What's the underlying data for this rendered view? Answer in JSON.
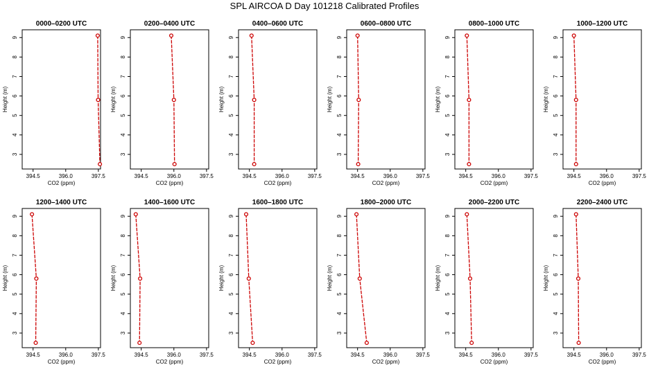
{
  "page": {
    "title": "SPL AIRCOA D  Day 101218  Calibrated Profiles"
  },
  "colors": {
    "profile_line": "#cc0000",
    "frame": "#000000",
    "background": "#ffffff"
  },
  "chart_data": [
    {
      "type": "line",
      "title": "0000–0200 UTC",
      "xlabel": "CO2 (ppm)",
      "ylabel": "Height (m)",
      "x_ticks": [
        "394.5",
        "396.0",
        "397.5"
      ],
      "y_ticks": [
        "3",
        "4",
        "5",
        "6",
        "7",
        "8",
        "9"
      ],
      "xlim": [
        394.0,
        397.6
      ],
      "ylim": [
        2.25,
        9.4
      ],
      "grid": false,
      "series": [
        {
          "x": [
            397.47,
            397.49,
            397.57
          ],
          "y": [
            9.1,
            5.8,
            2.5
          ]
        }
      ]
    },
    {
      "type": "line",
      "title": "0200–0400 UTC",
      "xlabel": "CO2 (ppm)",
      "ylabel": "Height (m)",
      "x_ticks": [
        "394.5",
        "396.0",
        "397.5"
      ],
      "y_ticks": [
        "3",
        "4",
        "5",
        "6",
        "7",
        "8",
        "9"
      ],
      "xlim": [
        394.0,
        397.6
      ],
      "ylim": [
        2.25,
        9.4
      ],
      "grid": false,
      "series": [
        {
          "x": [
            395.88,
            396.0,
            396.03
          ],
          "y": [
            9.1,
            5.8,
            2.5
          ]
        }
      ]
    },
    {
      "type": "line",
      "title": "0400–0600 UTC",
      "xlabel": "CO2 (ppm)",
      "ylabel": "Height (m)",
      "x_ticks": [
        "394.5",
        "396.0",
        "397.5"
      ],
      "y_ticks": [
        "3",
        "4",
        "5",
        "6",
        "7",
        "8",
        "9"
      ],
      "xlim": [
        394.0,
        397.6
      ],
      "ylim": [
        2.25,
        9.4
      ],
      "grid": false,
      "series": [
        {
          "x": [
            394.6,
            394.72,
            394.72
          ],
          "y": [
            9.1,
            5.8,
            2.5
          ]
        }
      ]
    },
    {
      "type": "line",
      "title": "0600–0800 UTC",
      "xlabel": "CO2 (ppm)",
      "ylabel": "Height (m)",
      "x_ticks": [
        "394.5",
        "396.0",
        "397.5"
      ],
      "y_ticks": [
        "3",
        "4",
        "5",
        "6",
        "7",
        "8",
        "9"
      ],
      "xlim": [
        394.0,
        397.6
      ],
      "ylim": [
        2.25,
        9.4
      ],
      "grid": false,
      "series": [
        {
          "x": [
            394.5,
            394.55,
            394.53
          ],
          "y": [
            9.1,
            5.8,
            2.5
          ]
        }
      ]
    },
    {
      "type": "line",
      "title": "0800–1000 UTC",
      "xlabel": "CO2 (ppm)",
      "ylabel": "Height (m)",
      "x_ticks": [
        "394.5",
        "396.0",
        "397.5"
      ],
      "y_ticks": [
        "3",
        "4",
        "5",
        "6",
        "7",
        "8",
        "9"
      ],
      "xlim": [
        394.0,
        397.6
      ],
      "ylim": [
        2.25,
        9.4
      ],
      "grid": false,
      "series": [
        {
          "x": [
            394.55,
            394.65,
            394.65
          ],
          "y": [
            9.1,
            5.8,
            2.5
          ]
        }
      ]
    },
    {
      "type": "line",
      "title": "1000–1200 UTC",
      "xlabel": "CO2 (ppm)",
      "ylabel": "Height (m)",
      "x_ticks": [
        "394.5",
        "396.0",
        "397.5"
      ],
      "y_ticks": [
        "3",
        "4",
        "5",
        "6",
        "7",
        "8",
        "9"
      ],
      "xlim": [
        394.0,
        397.6
      ],
      "ylim": [
        2.25,
        9.4
      ],
      "grid": false,
      "series": [
        {
          "x": [
            394.5,
            394.6,
            394.6
          ],
          "y": [
            9.1,
            5.8,
            2.5
          ]
        }
      ]
    },
    {
      "type": "line",
      "title": "1200–1400 UTC",
      "xlabel": "CO2 (ppm)",
      "ylabel": "Height (m)",
      "x_ticks": [
        "394.5",
        "396.0",
        "397.5"
      ],
      "y_ticks": [
        "3",
        "4",
        "5",
        "6",
        "7",
        "8",
        "9"
      ],
      "xlim": [
        394.0,
        397.6
      ],
      "ylim": [
        2.25,
        9.4
      ],
      "grid": false,
      "series": [
        {
          "x": [
            394.45,
            394.65,
            394.62
          ],
          "y": [
            9.1,
            5.8,
            2.5
          ]
        }
      ]
    },
    {
      "type": "line",
      "title": "1400–1600 UTC",
      "xlabel": "CO2 (ppm)",
      "ylabel": "Height (m)",
      "x_ticks": [
        "394.5",
        "396.0",
        "397.5"
      ],
      "y_ticks": [
        "3",
        "4",
        "5",
        "6",
        "7",
        "8",
        "9"
      ],
      "xlim": [
        394.0,
        397.6
      ],
      "ylim": [
        2.25,
        9.4
      ],
      "grid": false,
      "series": [
        {
          "x": [
            394.25,
            394.45,
            394.42
          ],
          "y": [
            9.1,
            5.8,
            2.5
          ]
        }
      ]
    },
    {
      "type": "line",
      "title": "1600–1800 UTC",
      "xlabel": "CO2 (ppm)",
      "ylabel": "Height (m)",
      "x_ticks": [
        "394.5",
        "396.0",
        "397.5"
      ],
      "y_ticks": [
        "3",
        "4",
        "5",
        "6",
        "7",
        "8",
        "9"
      ],
      "xlim": [
        394.0,
        397.6
      ],
      "ylim": [
        2.25,
        9.4
      ],
      "grid": false,
      "series": [
        {
          "x": [
            394.35,
            394.47,
            394.65
          ],
          "y": [
            9.1,
            5.8,
            2.5
          ]
        }
      ]
    },
    {
      "type": "line",
      "title": "1800–2000 UTC",
      "xlabel": "CO2 (ppm)",
      "ylabel": "Height (m)",
      "x_ticks": [
        "394.5",
        "396.0",
        "397.5"
      ],
      "y_ticks": [
        "3",
        "4",
        "5",
        "6",
        "7",
        "8",
        "9"
      ],
      "xlim": [
        394.0,
        397.6
      ],
      "ylim": [
        2.25,
        9.4
      ],
      "grid": false,
      "series": [
        {
          "x": [
            394.45,
            394.6,
            394.92
          ],
          "y": [
            9.1,
            5.8,
            2.5
          ]
        }
      ]
    },
    {
      "type": "line",
      "title": "2000–2200 UTC",
      "xlabel": "CO2 (ppm)",
      "ylabel": "Height (m)",
      "x_ticks": [
        "394.5",
        "396.0",
        "397.5"
      ],
      "y_ticks": [
        "3",
        "4",
        "5",
        "6",
        "7",
        "8",
        "9"
      ],
      "xlim": [
        394.0,
        397.6
      ],
      "ylim": [
        2.25,
        9.4
      ],
      "grid": false,
      "series": [
        {
          "x": [
            394.55,
            394.7,
            394.77
          ],
          "y": [
            9.1,
            5.8,
            2.5
          ]
        }
      ]
    },
    {
      "type": "line",
      "title": "2200–2400 UTC",
      "xlabel": "CO2 (ppm)",
      "ylabel": "Height (m)",
      "x_ticks": [
        "394.5",
        "396.0",
        "397.5"
      ],
      "y_ticks": [
        "3",
        "4",
        "5",
        "6",
        "7",
        "8",
        "9"
      ],
      "xlim": [
        394.0,
        397.6
      ],
      "ylim": [
        2.25,
        9.4
      ],
      "grid": false,
      "series": [
        {
          "x": [
            394.6,
            394.7,
            394.72
          ],
          "y": [
            9.1,
            5.8,
            2.5
          ]
        }
      ]
    }
  ]
}
